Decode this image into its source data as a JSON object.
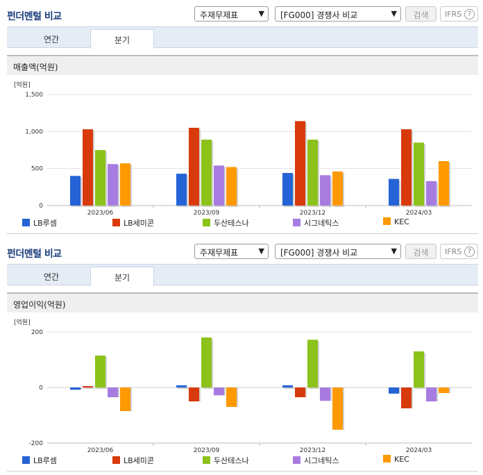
{
  "widgets": [
    {
      "title": "펀더멘털 비교",
      "report_select": "주재무제표",
      "compare_select": "[FG000] 경쟁사 비교",
      "search_label": "검색",
      "ifrs_label": "IFRS",
      "help_glyph": "?",
      "tabs": [
        "연간",
        "분기"
      ],
      "active_tab": "분기",
      "section_title": "매출액(억원)"
    },
    {
      "title": "펀더멘털 비교",
      "report_select": "주재무제표",
      "compare_select": "[FG000] 경쟁사 비교",
      "search_label": "검색",
      "ifrs_label": "IFRS",
      "help_glyph": "?",
      "tabs": [
        "연간",
        "분기"
      ],
      "active_tab": "분기",
      "section_title": "영업이익(억원)"
    }
  ],
  "chart_data": [
    {
      "type": "bar",
      "unit_label": "[억원]",
      "categories": [
        "2023/06",
        "2023/09",
        "2023/12",
        "2024/03"
      ],
      "ylim": [
        0,
        1500
      ],
      "yticks": [
        0,
        500,
        1000,
        1500
      ],
      "ytick_labels": [
        "0",
        "500",
        "1,000",
        "1,500"
      ],
      "grid": true,
      "legend_position": "bottom",
      "series": [
        {
          "name": "LB루셈",
          "color": "#2563d6",
          "values": [
            400,
            430,
            440,
            360
          ]
        },
        {
          "name": "LB세미콘",
          "color": "#d83a0c",
          "values": [
            1030,
            1050,
            1140,
            1030
          ]
        },
        {
          "name": "두산테스나",
          "color": "#8cc21a",
          "values": [
            750,
            890,
            890,
            850
          ]
        },
        {
          "name": "시그네틱스",
          "color": "#a77ce0",
          "values": [
            560,
            540,
            410,
            330
          ]
        },
        {
          "name": "KEC",
          "color": "#ff9900",
          "values": [
            570,
            520,
            460,
            600
          ]
        }
      ]
    },
    {
      "type": "bar",
      "unit_label": "[억원]",
      "categories": [
        "2023/06",
        "2023/09",
        "2023/12",
        "2024/03"
      ],
      "ylim": [
        -200,
        200
      ],
      "yticks": [
        -200,
        0,
        200
      ],
      "ytick_labels": [
        "-200",
        "0",
        "200"
      ],
      "grid": true,
      "legend_position": "bottom",
      "series": [
        {
          "name": "LB루셈",
          "color": "#2563d6",
          "values": [
            -8,
            8,
            8,
            -22
          ]
        },
        {
          "name": "LB세미콘",
          "color": "#d83a0c",
          "values": [
            5,
            -50,
            -35,
            -75
          ]
        },
        {
          "name": "두산테스나",
          "color": "#8cc21a",
          "values": [
            115,
            180,
            172,
            130
          ]
        },
        {
          "name": "시그네틱스",
          "color": "#a77ce0",
          "values": [
            -35,
            -28,
            -48,
            -50
          ]
        },
        {
          "name": "KEC",
          "color": "#ff9900",
          "values": [
            -85,
            -70,
            -152,
            -20
          ]
        }
      ]
    }
  ]
}
